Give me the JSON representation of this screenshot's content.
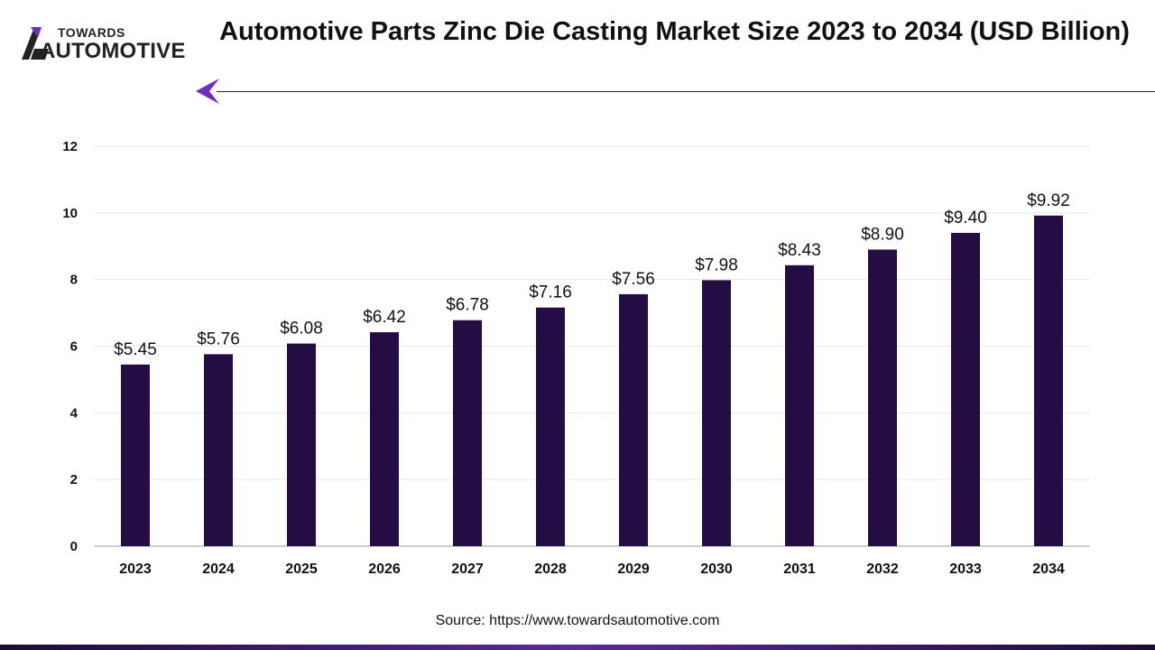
{
  "logo": {
    "line1": "TOWARDS",
    "line2": "AUTOMOTIVE"
  },
  "title": "Automotive Parts Zinc Die Casting Market Size 2023 to 2034 (USD Billion)",
  "source": "Source: https://www.towardsautomotive.com",
  "colors": {
    "bar": "#230d42",
    "accent": "#6b2fc4",
    "grid": "#e6e6e6"
  },
  "chart_data": {
    "type": "bar",
    "categories": [
      "2023",
      "2024",
      "2025",
      "2026",
      "2027",
      "2028",
      "2029",
      "2030",
      "2031",
      "2032",
      "2033",
      "2034"
    ],
    "values": [
      5.45,
      5.76,
      6.08,
      6.42,
      6.78,
      7.16,
      7.56,
      7.98,
      8.43,
      8.9,
      9.4,
      9.92
    ],
    "data_labels": [
      "$5.45",
      "$5.76",
      "$6.08",
      "$6.42",
      "$6.78",
      "$7.16",
      "$7.56",
      "$7.98",
      "$8.43",
      "$8.90",
      "$9.40",
      "$9.92"
    ],
    "y_ticks": [
      0,
      2,
      4,
      6,
      8,
      10,
      12
    ],
    "ylim": [
      0,
      12
    ],
    "grid": true,
    "legend": "none",
    "title": "Automotive Parts Zinc Die Casting Market Size 2023 to 2034 (USD Billion)",
    "xlabel": "",
    "ylabel": ""
  }
}
